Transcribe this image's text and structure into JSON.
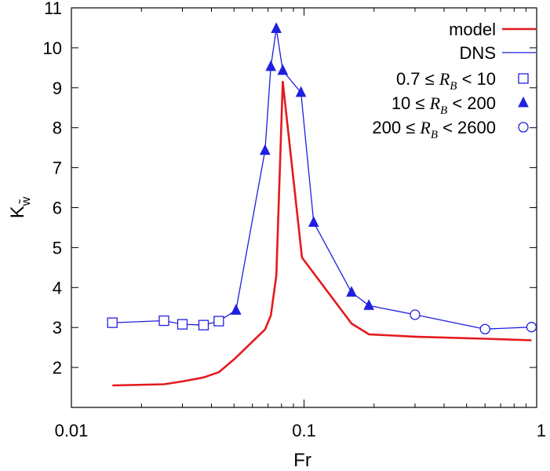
{
  "chart_data": {
    "type": "line",
    "title": "",
    "xlabel": "Fr",
    "ylabel": "K",
    "ylabel_subscript": "w̃",
    "xscale": "log",
    "xlim": [
      0.01,
      1
    ],
    "ylim": [
      1,
      11
    ],
    "x_ticks": [
      0.01,
      0.1,
      1
    ],
    "x_tick_labels": [
      "0.01",
      "0.1",
      "1"
    ],
    "y_ticks": [
      2,
      3,
      4,
      5,
      6,
      7,
      8,
      9,
      10,
      11
    ],
    "y_tick_labels": [
      "2",
      "3",
      "4",
      "5",
      "6",
      "7",
      "8",
      "9",
      "10",
      "11"
    ],
    "grid": false,
    "legend_position": "top-right",
    "series": [
      {
        "name": "model",
        "color": "#e41a1c",
        "style": "line",
        "x": [
          0.015,
          0.025,
          0.03,
          0.037,
          0.043,
          0.05,
          0.068,
          0.072,
          0.076,
          0.081,
          0.098,
          0.16,
          0.19,
          0.3,
          0.6,
          0.95
        ],
        "y": [
          1.55,
          1.58,
          1.65,
          1.75,
          1.88,
          2.2,
          2.95,
          3.3,
          4.3,
          9.15,
          4.75,
          3.1,
          2.83,
          2.77,
          2.72,
          2.68
        ]
      },
      {
        "name": "DNS",
        "color": "#1f1fe0",
        "style": "line",
        "x": [
          0.015,
          0.025,
          0.03,
          0.037,
          0.043,
          0.051,
          0.068,
          0.072,
          0.076,
          0.081,
          0.097,
          0.11,
          0.16,
          0.19,
          0.3,
          0.6,
          0.95
        ],
        "y": [
          3.12,
          3.17,
          3.08,
          3.06,
          3.16,
          3.43,
          7.43,
          9.53,
          10.48,
          9.43,
          8.88,
          5.63,
          3.88,
          3.55,
          3.32,
          2.96,
          3.01
        ]
      }
    ],
    "marker_groups": [
      {
        "label_prefix": "0.7 ≤ ",
        "label_math": "R",
        "label_sub": "B",
        "label_suffix": " <   10",
        "marker": "square",
        "x": [
          0.015,
          0.025,
          0.03,
          0.037,
          0.043
        ],
        "y": [
          3.12,
          3.17,
          3.08,
          3.06,
          3.16
        ]
      },
      {
        "label_prefix": "10 ≤ ",
        "label_math": "R",
        "label_sub": "B",
        "label_suffix": " <  200",
        "marker": "triangle",
        "x": [
          0.051,
          0.068,
          0.072,
          0.076,
          0.081,
          0.097,
          0.11,
          0.16,
          0.19
        ],
        "y": [
          3.43,
          7.43,
          9.53,
          10.48,
          9.43,
          8.88,
          5.63,
          3.88,
          3.55
        ]
      },
      {
        "label_prefix": "200 ≤ ",
        "label_math": "R",
        "label_sub": "B",
        "label_suffix": " < 2600",
        "marker": "circle",
        "x": [
          0.3,
          0.6,
          0.95
        ],
        "y": [
          3.32,
          2.96,
          3.01
        ]
      }
    ]
  }
}
